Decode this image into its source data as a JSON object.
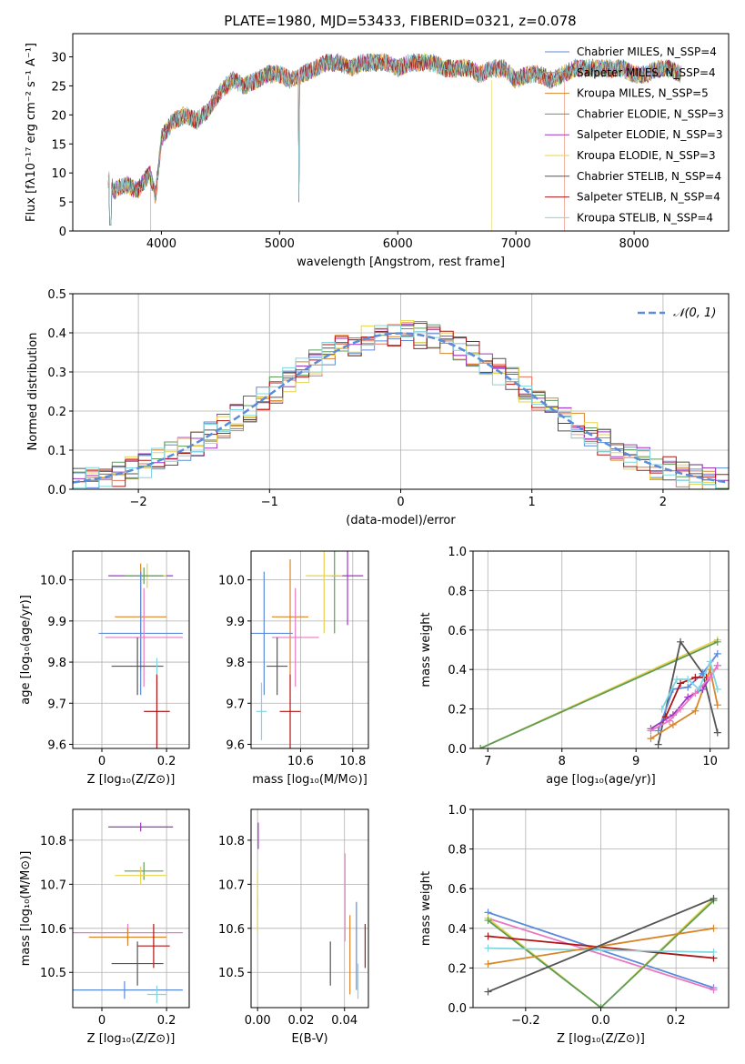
{
  "figure": {
    "title": "PLATE=1980, MJD=53433, FIBERID=0321, z=0.078"
  },
  "colors": {
    "chabrier_miles": "#5b8bd9",
    "salpeter_miles": "#e8735a",
    "kroupa_miles": "#d8862a",
    "chabrier_elodie": "#5f9c5a",
    "salpeter_elodie": "#a037c0",
    "kroupa_elodie": "#e8d34a",
    "chabrier_stelib": "#555555",
    "salpeter_stelib": "#b01515",
    "kroupa_stelib": "#7fd6e0",
    "pink": "#e77ac2",
    "gaussian": "#5b8bd9",
    "grid": "#b0b0b0"
  },
  "chart_data": [
    {
      "id": "spectrum",
      "type": "line",
      "xlabel": "wavelength [Angstrom, rest frame]",
      "ylabel": "Flux [fλ10⁻¹⁷ erg cm⁻² s⁻¹ A⁻¹]",
      "xlim": [
        3250,
        8800
      ],
      "ylim": [
        0,
        34
      ],
      "xticks": [
        4000,
        5000,
        6000,
        7000,
        8000
      ],
      "yticks": [
        0,
        5,
        10,
        15,
        20,
        25,
        30
      ],
      "grid": false,
      "legend_position": "top-right",
      "envelope": {
        "x": [
          3550,
          3600,
          3700,
          3800,
          3900,
          3950,
          4000,
          4100,
          4200,
          4300,
          4400,
          4500,
          4600,
          4700,
          4800,
          4900,
          5000,
          5100,
          5200,
          5300,
          5400,
          5500,
          5600,
          5700,
          5800,
          5900,
          6000,
          6100,
          6200,
          6300,
          6400,
          6500,
          6600,
          6700,
          6800,
          6900,
          7000,
          7100,
          7200,
          7300,
          7400,
          7500,
          7600,
          7700,
          7800,
          7900,
          8000,
          8100,
          8200,
          8300,
          8400
        ],
        "y": [
          9,
          7,
          8,
          7,
          10,
          6,
          16,
          19,
          20,
          19,
          21,
          24,
          26,
          25,
          26,
          27,
          27,
          26,
          27,
          28,
          29,
          29,
          28,
          29,
          29,
          29,
          28,
          29,
          29,
          29,
          28,
          28,
          28,
          27,
          28,
          28,
          26,
          27,
          27,
          26,
          27,
          28,
          28,
          28,
          28,
          28,
          27,
          27,
          28,
          28,
          27
        ]
      },
      "series": [
        {
          "name": "Chabrier MILES, N_SSP=4",
          "color_key": "chabrier_miles"
        },
        {
          "name": "Salpeter MILES, N_SSP=4",
          "color_key": "salpeter_miles"
        },
        {
          "name": "Kroupa MILES, N_SSP=5",
          "color_key": "kroupa_miles"
        },
        {
          "name": "Chabrier ELODIE, N_SSP=3",
          "color_key": "chabrier_elodie"
        },
        {
          "name": "Salpeter ELODIE, N_SSP=3",
          "color_key": "salpeter_elodie"
        },
        {
          "name": "Kroupa ELODIE, N_SSP=3",
          "color_key": "kroupa_elodie"
        },
        {
          "name": "Chabrier STELIB, N_SSP=4",
          "color_key": "chabrier_stelib"
        },
        {
          "name": "Salpeter STELIB, N_SSP=4",
          "color_key": "salpeter_stelib"
        },
        {
          "name": "Kroupa STELIB, N_SSP=4",
          "color_key": "kroupa_stelib"
        }
      ]
    },
    {
      "id": "residuals",
      "type": "histogram",
      "xlabel": "(data-model)/error",
      "ylabel": "Normed distribution",
      "xlim": [
        -2.5,
        2.5
      ],
      "ylim": [
        0,
        0.5
      ],
      "xticks": [
        -2,
        -1,
        0,
        1,
        2
      ],
      "xticklabels": [
        "−2",
        "−1",
        "0",
        "1",
        "2"
      ],
      "yticks": [
        0.0,
        0.1,
        0.2,
        0.3,
        0.4,
        0.5
      ],
      "grid": true,
      "legend_position": "top-right",
      "legend_label": "𝒩(0, 1)",
      "gaussian": {
        "mean": 0,
        "sigma": 1
      }
    },
    {
      "id": "age_vs_Z",
      "type": "scatter",
      "xlabel": "Z [log₁₀(Z/Z⊙)]",
      "ylabel": "age  [log₁₀(age/yr)]",
      "xlim": [
        -0.09,
        0.27
      ],
      "ylim": [
        9.59,
        10.07
      ],
      "xticks": [
        0.0,
        0.2
      ],
      "yticks": [
        9.6,
        9.7,
        9.8,
        9.9,
        10.0
      ],
      "grid": true,
      "points": [
        {
          "x": 0.12,
          "y": 10.01,
          "xerr": 0.1,
          "yerr": 0.01,
          "color_key": "salpeter_elodie"
        },
        {
          "x": 0.14,
          "y": 10.01,
          "xerr": 0.06,
          "yerr": 0.03,
          "color_key": "kroupa_elodie"
        },
        {
          "x": 0.13,
          "y": 10.01,
          "xerr": 0.06,
          "yerr": 0.02,
          "color_key": "chabrier_elodie"
        },
        {
          "x": 0.12,
          "y": 9.91,
          "xerr": 0.08,
          "yerr": 0.13,
          "color_key": "kroupa_miles"
        },
        {
          "x": 0.12,
          "y": 9.87,
          "xerr": 0.13,
          "yerr": 0.15,
          "color_key": "chabrier_miles"
        },
        {
          "x": 0.13,
          "y": 9.86,
          "xerr": 0.12,
          "yerr": 0.12,
          "color_key": "pink"
        },
        {
          "x": 0.11,
          "y": 9.79,
          "xerr": 0.08,
          "yerr": 0.07,
          "color_key": "chabrier_stelib"
        },
        {
          "x": 0.17,
          "y": 9.68,
          "xerr": 0.04,
          "yerr": 0.13,
          "color_key": "kroupa_stelib"
        },
        {
          "x": 0.17,
          "y": 9.68,
          "xerr": 0.04,
          "yerr": 0.09,
          "color_key": "salpeter_stelib"
        }
      ]
    },
    {
      "id": "age_vs_mass",
      "type": "scatter",
      "xlabel": "mass [log₁₀(M/M⊙)]",
      "xlim": [
        10.41,
        10.86
      ],
      "ylim": [
        9.59,
        10.07
      ],
      "xticks": [
        10.6,
        10.8
      ],
      "yticks": [
        9.6,
        9.7,
        9.8,
        9.9,
        10.0
      ],
      "grid": true,
      "points": [
        {
          "x": 10.78,
          "y": 10.01,
          "xerr": 0.06,
          "yerr": 0.12,
          "color_key": "salpeter_elodie"
        },
        {
          "x": 10.73,
          "y": 10.01,
          "xerr": 0.02,
          "yerr": 0.14,
          "color_key": "chabrier_elodie"
        },
        {
          "x": 10.69,
          "y": 10.01,
          "xerr": 0.07,
          "yerr": 0.14,
          "color_key": "kroupa_elodie"
        },
        {
          "x": 10.56,
          "y": 9.91,
          "xerr": 0.07,
          "yerr": 0.14,
          "color_key": "kroupa_miles"
        },
        {
          "x": 10.46,
          "y": 9.87,
          "xerr": 0.11,
          "yerr": 0.15,
          "color_key": "chabrier_miles"
        },
        {
          "x": 10.58,
          "y": 9.86,
          "xerr": 0.09,
          "yerr": 0.12,
          "color_key": "pink"
        },
        {
          "x": 10.51,
          "y": 9.79,
          "xerr": 0.04,
          "yerr": 0.07,
          "color_key": "chabrier_stelib"
        },
        {
          "x": 10.56,
          "y": 9.68,
          "xerr": 0.04,
          "yerr": 0.09,
          "color_key": "salpeter_stelib"
        },
        {
          "x": 10.45,
          "y": 9.68,
          "xerr": 0.02,
          "yerr": 0.07,
          "color_key": "kroupa_stelib"
        }
      ]
    },
    {
      "id": "weight_vs_age",
      "type": "line",
      "xlabel": "age  [log₁₀(age/yr)]",
      "ylabel": "mass weight",
      "xlim": [
        6.8,
        10.25
      ],
      "ylim": [
        0,
        1.0
      ],
      "xticks": [
        7,
        8,
        9,
        10
      ],
      "yticks": [
        0.0,
        0.2,
        0.4,
        0.6,
        0.8,
        1.0
      ],
      "grid": true,
      "series": [
        {
          "color_key": "kroupa_elodie",
          "x": [
            6.9,
            10.1
          ],
          "y": [
            0.0,
            0.55
          ]
        },
        {
          "color_key": "chabrier_elodie",
          "x": [
            6.9,
            10.1
          ],
          "y": [
            0.0,
            0.54
          ]
        },
        {
          "color_key": "chabrier_stelib",
          "x": [
            9.3,
            9.6,
            9.9,
            10.1
          ],
          "y": [
            0.02,
            0.54,
            0.38,
            0.08
          ]
        },
        {
          "color_key": "kroupa_miles",
          "x": [
            9.2,
            9.5,
            9.8,
            10.0,
            10.1
          ],
          "y": [
            0.05,
            0.12,
            0.19,
            0.4,
            0.22
          ]
        },
        {
          "color_key": "chabrier_miles",
          "x": [
            9.3,
            9.5,
            9.7,
            9.9,
            10.1
          ],
          "y": [
            0.09,
            0.3,
            0.31,
            0.38,
            0.48
          ]
        },
        {
          "color_key": "salpeter_stelib",
          "x": [
            9.4,
            9.6,
            9.8,
            9.95
          ],
          "y": [
            0.16,
            0.33,
            0.36,
            0.36
          ]
        },
        {
          "color_key": "salpeter_elodie",
          "x": [
            9.2,
            9.5,
            9.7,
            9.9,
            10.1
          ],
          "y": [
            0.1,
            0.17,
            0.26,
            0.3,
            0.42
          ]
        },
        {
          "color_key": "pink",
          "x": [
            9.2,
            9.45,
            9.6,
            9.8,
            10.0,
            10.1
          ],
          "y": [
            0.09,
            0.14,
            0.2,
            0.28,
            0.36,
            0.42
          ]
        },
        {
          "color_key": "kroupa_stelib",
          "x": [
            9.35,
            9.55,
            9.7,
            9.85,
            10.0,
            10.1
          ],
          "y": [
            0.2,
            0.35,
            0.35,
            0.3,
            0.44,
            0.3
          ]
        }
      ]
    },
    {
      "id": "mass_vs_Z",
      "type": "scatter",
      "xlabel": "Z [log₁₀(Z/Z⊙)]",
      "ylabel": "mass [log₁₀(M/M⊙)]",
      "xlim": [
        -0.09,
        0.27
      ],
      "ylim": [
        10.42,
        10.87
      ],
      "xticks": [
        0.0,
        0.2
      ],
      "yticks": [
        10.5,
        10.6,
        10.7,
        10.8
      ],
      "grid": true,
      "points": [
        {
          "x": 0.12,
          "y": 10.83,
          "xerr": 0.1,
          "yerr": 0.01,
          "color_key": "salpeter_elodie"
        },
        {
          "x": 0.13,
          "y": 10.73,
          "xerr": 0.06,
          "yerr": 0.02,
          "color_key": "chabrier_elodie"
        },
        {
          "x": 0.12,
          "y": 10.72,
          "xerr": 0.08,
          "yerr": 0.02,
          "color_key": "kroupa_elodie"
        },
        {
          "x": 0.08,
          "y": 10.59,
          "xerr": 0.17,
          "yerr": 0.02,
          "color_key": "pink"
        },
        {
          "x": 0.08,
          "y": 10.58,
          "xerr": 0.12,
          "yerr": 0.02,
          "color_key": "kroupa_miles"
        },
        {
          "x": 0.16,
          "y": 10.56,
          "xerr": 0.05,
          "yerr": 0.05,
          "color_key": "salpeter_stelib"
        },
        {
          "x": 0.11,
          "y": 10.52,
          "xerr": 0.08,
          "yerr": 0.05,
          "color_key": "chabrier_stelib"
        },
        {
          "x": 0.07,
          "y": 10.46,
          "xerr": 0.18,
          "yerr": 0.02,
          "color_key": "chabrier_miles"
        },
        {
          "x": 0.17,
          "y": 10.45,
          "xerr": 0.03,
          "yerr": 0.02,
          "color_key": "kroupa_stelib"
        }
      ]
    },
    {
      "id": "mass_vs_ebv",
      "type": "scatter",
      "xlabel": "E(B-V)",
      "xlim": [
        -0.003,
        0.051
      ],
      "ylim": [
        10.42,
        10.87
      ],
      "xticks": [
        0.0,
        0.02,
        0.04
      ],
      "xticklabels": [
        "0.00",
        "0.02",
        "0.04"
      ],
      "yticks": [
        10.5,
        10.6,
        10.7,
        10.8
      ],
      "grid": true,
      "points": [
        {
          "x": 0.0003,
          "y": 10.81,
          "yerr": 0.03,
          "color_key": "salpeter_elodie"
        },
        {
          "x": 0.0,
          "y": 10.69,
          "yerr": 0.04,
          "color_key": "kroupa_elodie"
        },
        {
          "x": 0.0,
          "y": 10.63,
          "yerr": 0.04,
          "color_key": "kroupa_elodie"
        },
        {
          "x": 0.0335,
          "y": 10.52,
          "yerr": 0.05,
          "color_key": "chabrier_stelib"
        },
        {
          "x": 0.0402,
          "y": 10.67,
          "yerr": 0.1,
          "color_key": "pink"
        },
        {
          "x": 0.0425,
          "y": 10.54,
          "yerr": 0.09,
          "color_key": "kroupa_miles"
        },
        {
          "x": 0.0455,
          "y": 10.56,
          "yerr": 0.1,
          "color_key": "chabrier_miles"
        },
        {
          "x": 0.0462,
          "y": 10.48,
          "yerr": 0.04,
          "color_key": "kroupa_stelib"
        },
        {
          "x": 0.0495,
          "y": 10.56,
          "yerr": 0.05,
          "color_key": "salpeter_stelib"
        }
      ]
    },
    {
      "id": "weight_vs_Z",
      "type": "line",
      "xlabel": "Z [log₁₀(Z/Z⊙)]",
      "ylabel": "mass weight",
      "xlim": [
        -0.34,
        0.34
      ],
      "ylim": [
        0,
        1.0
      ],
      "xticks": [
        -0.2,
        0.0,
        0.2
      ],
      "xticklabels": [
        "−0.2",
        "0.0",
        "0.2"
      ],
      "yticks": [
        0.0,
        0.2,
        0.4,
        0.6,
        0.8,
        1.0
      ],
      "grid": true,
      "series": [
        {
          "color_key": "chabrier_miles",
          "x": [
            -0.3,
            0.3
          ],
          "y": [
            0.48,
            0.1
          ]
        },
        {
          "color_key": "pink",
          "x": [
            -0.3,
            0.3
          ],
          "y": [
            0.45,
            0.09
          ]
        },
        {
          "color_key": "kroupa_elodie",
          "x": [
            -0.3,
            0.0,
            0.3
          ],
          "y": [
            0.45,
            0.0,
            0.55
          ]
        },
        {
          "color_key": "chabrier_elodie",
          "x": [
            -0.3,
            0.0,
            0.3
          ],
          "y": [
            0.44,
            0.0,
            0.54
          ]
        },
        {
          "color_key": "salpeter_stelib",
          "x": [
            -0.3,
            0.3
          ],
          "y": [
            0.36,
            0.25
          ]
        },
        {
          "color_key": "kroupa_stelib",
          "x": [
            -0.3,
            0.3
          ],
          "y": [
            0.3,
            0.28
          ]
        },
        {
          "color_key": "kroupa_miles",
          "x": [
            -0.3,
            0.3
          ],
          "y": [
            0.22,
            0.4
          ]
        },
        {
          "color_key": "chabrier_stelib",
          "x": [
            -0.3,
            0.3
          ],
          "y": [
            0.08,
            0.55
          ]
        }
      ]
    }
  ]
}
